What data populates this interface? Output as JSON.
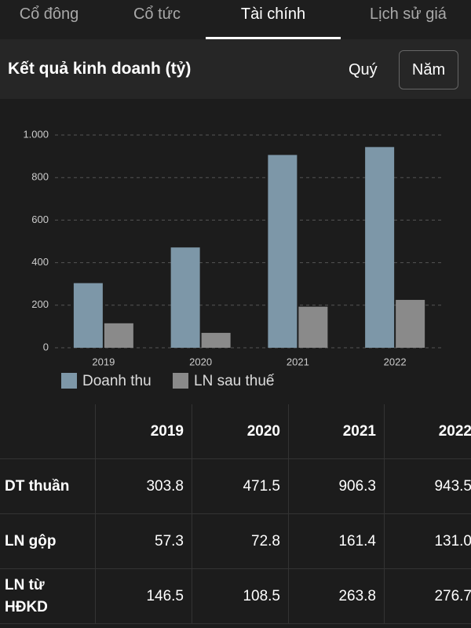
{
  "tabs": [
    "Cổ đông",
    "Cổ tức",
    "Tài chính",
    "Lịch sử giá"
  ],
  "section": {
    "title": "Kết quả kinh doanh (tỷ)",
    "options": [
      "Quý",
      "Năm"
    ]
  },
  "chart_data": {
    "type": "bar",
    "categories": [
      "2019",
      "2020",
      "2021",
      "2022"
    ],
    "series": [
      {
        "name": "Doanh thu",
        "color": "#7d97a8",
        "values": [
          303.8,
          471.5,
          906.3,
          943.5
        ]
      },
      {
        "name": "LN sau thuế",
        "color": "#8a8a8a",
        "values": [
          115,
          70,
          193,
          225
        ]
      }
    ],
    "ylim": [
      0,
      1000
    ],
    "yticks": [
      0,
      200,
      400,
      600,
      800,
      {
        "value": 1000,
        "label": "1.000"
      }
    ],
    "grid": true
  },
  "table": {
    "columns": [
      "2019",
      "2020",
      "2021",
      "2022"
    ],
    "rows": [
      {
        "label": "DT thuần",
        "values": [
          "303.8",
          "471.5",
          "906.3",
          "943.5"
        ]
      },
      {
        "label": "LN gộp",
        "values": [
          "57.3",
          "72.8",
          "161.4",
          "131.0"
        ]
      },
      {
        "label": "LN từ HĐKD",
        "values": [
          "146.5",
          "108.5",
          "263.8",
          "276.7"
        ]
      }
    ]
  }
}
